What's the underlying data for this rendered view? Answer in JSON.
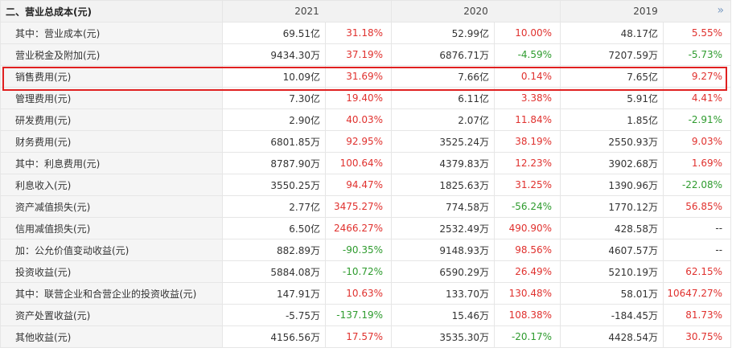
{
  "header": {
    "section_title": "二、营业总成本(元)",
    "years": [
      "2021",
      "2020",
      "2019"
    ],
    "more_icon": "double-chevron-right-icon"
  },
  "colors": {
    "positive": "#e0312e",
    "negative": "#2e9b2e",
    "highlight": "#e02020"
  },
  "rows": [
    {
      "label": "其中：营业成本(元)",
      "y2021": {
        "v": "69.51亿",
        "p": "31.18%"
      },
      "y2020": {
        "v": "52.99亿",
        "p": "10.00%"
      },
      "y2019": {
        "v": "48.17亿",
        "p": "5.55%"
      }
    },
    {
      "label": "营业税金及附加(元)",
      "y2021": {
        "v": "9434.30万",
        "p": "37.19%"
      },
      "y2020": {
        "v": "6876.71万",
        "p": "-4.59%"
      },
      "y2019": {
        "v": "7207.59万",
        "p": "-5.73%"
      }
    },
    {
      "label": "销售费用(元)",
      "y2021": {
        "v": "10.09亿",
        "p": "31.69%"
      },
      "y2020": {
        "v": "7.66亿",
        "p": "0.14%"
      },
      "y2019": {
        "v": "7.65亿",
        "p": "9.27%"
      }
    },
    {
      "label": "管理费用(元)",
      "y2021": {
        "v": "7.30亿",
        "p": "19.40%"
      },
      "y2020": {
        "v": "6.11亿",
        "p": "3.38%"
      },
      "y2019": {
        "v": "5.91亿",
        "p": "4.41%"
      }
    },
    {
      "label": "研发费用(元)",
      "y2021": {
        "v": "2.90亿",
        "p": "40.03%"
      },
      "y2020": {
        "v": "2.07亿",
        "p": "11.84%"
      },
      "y2019": {
        "v": "1.85亿",
        "p": "-2.91%"
      }
    },
    {
      "label": "财务费用(元)",
      "y2021": {
        "v": "6801.85万",
        "p": "92.95%"
      },
      "y2020": {
        "v": "3525.24万",
        "p": "38.19%"
      },
      "y2019": {
        "v": "2550.93万",
        "p": "9.03%"
      }
    },
    {
      "label": "其中：利息费用(元)",
      "y2021": {
        "v": "8787.90万",
        "p": "100.64%"
      },
      "y2020": {
        "v": "4379.83万",
        "p": "12.23%"
      },
      "y2019": {
        "v": "3902.68万",
        "p": "1.69%"
      }
    },
    {
      "label": "利息收入(元)",
      "y2021": {
        "v": "3550.25万",
        "p": "94.47%"
      },
      "y2020": {
        "v": "1825.63万",
        "p": "31.25%"
      },
      "y2019": {
        "v": "1390.96万",
        "p": "-22.08%"
      }
    },
    {
      "label": "资产减值损失(元)",
      "y2021": {
        "v": "2.77亿",
        "p": "3475.27%"
      },
      "y2020": {
        "v": "774.58万",
        "p": "-56.24%"
      },
      "y2019": {
        "v": "1770.12万",
        "p": "56.85%"
      }
    },
    {
      "label": "信用减值损失(元)",
      "y2021": {
        "v": "6.50亿",
        "p": "2466.27%"
      },
      "y2020": {
        "v": "2532.49万",
        "p": "490.90%"
      },
      "y2019": {
        "v": "428.58万",
        "p": "--"
      }
    },
    {
      "label": "加：公允价值变动收益(元)",
      "y2021": {
        "v": "882.89万",
        "p": "-90.35%"
      },
      "y2020": {
        "v": "9148.93万",
        "p": "98.56%"
      },
      "y2019": {
        "v": "4607.57万",
        "p": "--"
      }
    },
    {
      "label": "投资收益(元)",
      "y2021": {
        "v": "5884.08万",
        "p": "-10.72%"
      },
      "y2020": {
        "v": "6590.29万",
        "p": "26.49%"
      },
      "y2019": {
        "v": "5210.19万",
        "p": "62.15%"
      }
    },
    {
      "label": "其中：联营企业和合营企业的投资收益(元)",
      "y2021": {
        "v": "147.91万",
        "p": "10.63%"
      },
      "y2020": {
        "v": "133.70万",
        "p": "130.48%"
      },
      "y2019": {
        "v": "58.01万",
        "p": "10647.27%"
      }
    },
    {
      "label": "资产处置收益(元)",
      "y2021": {
        "v": "-5.75万",
        "p": "-137.19%"
      },
      "y2020": {
        "v": "15.46万",
        "p": "108.38%"
      },
      "y2019": {
        "v": "-184.45万",
        "p": "81.73%"
      }
    },
    {
      "label": "其他收益(元)",
      "y2021": {
        "v": "4156.56万",
        "p": "17.57%"
      },
      "y2020": {
        "v": "3535.30万",
        "p": "-20.17%"
      },
      "y2019": {
        "v": "4428.54万",
        "p": "30.75%"
      }
    }
  ]
}
